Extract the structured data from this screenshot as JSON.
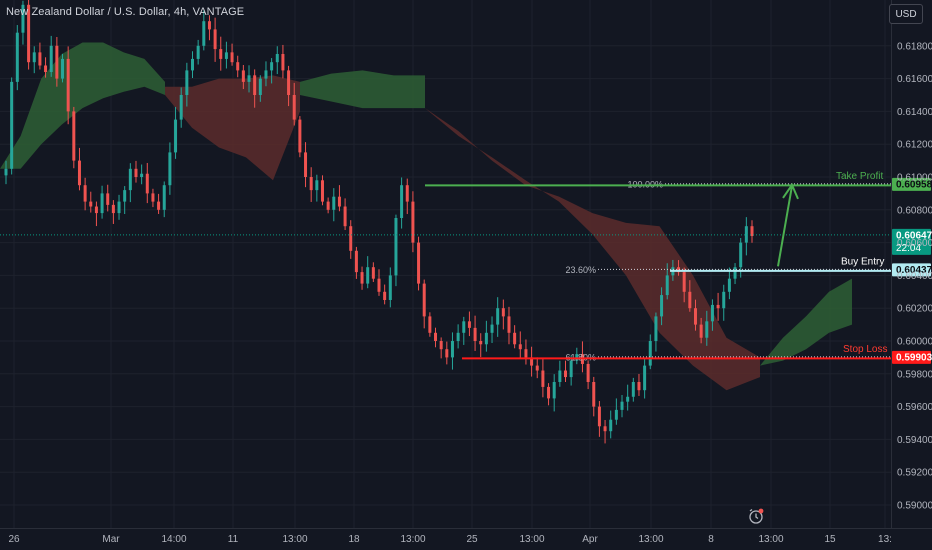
{
  "header": {
    "title": "New Zealand Dollar / U.S. Dollar, 4h, VANTAGE",
    "currency_button": "USD"
  },
  "colors": {
    "background": "#131722",
    "grid": "#1e222d",
    "bull": "#26a69a",
    "bear": "#ef5350",
    "cloud_bull": "#2e5f35",
    "cloud_bear": "#5c2b2b",
    "take_profit": "#4caf50",
    "buy_entry": "#b2ebf2",
    "stop_loss": "#ff1a1a",
    "current_price": "#089981"
  },
  "icons": {
    "alert": "alarm-clock-icon"
  },
  "chart_data": {
    "type": "candlestick",
    "symbol": "New Zealand Dollar / U.S. Dollar",
    "interval": "4h",
    "exchange": "VANTAGE",
    "yaxis": {
      "ticks": [
        0.59,
        0.592,
        0.594,
        0.596,
        0.598,
        0.6,
        0.602,
        0.604,
        0.606,
        0.608,
        0.61,
        0.612,
        0.614,
        0.616,
        0.618
      ],
      "tick_labels": [
        "0.59000",
        "0.59200",
        "0.59400",
        "0.59600",
        "0.59800",
        "0.60000",
        "0.60200",
        "0.60400",
        "0.60600",
        "0.60800",
        "0.61000",
        "0.61200",
        "0.61400",
        "0.61600",
        "0.61800"
      ]
    },
    "xaxis": {
      "ticks": [
        "26",
        "Mar",
        "14:00",
        "11",
        "13:00",
        "18",
        "13:00",
        "25",
        "13:00",
        "Apr",
        "13:00",
        "8",
        "13:00",
        "15",
        "13:"
      ]
    },
    "close_path": [
      0.6105,
      0.6158,
      0.6188,
      0.6205,
      0.617,
      0.6176,
      0.6168,
      0.6164,
      0.618,
      0.616,
      0.6172,
      0.614,
      0.611,
      0.6095,
      0.6085,
      0.6082,
      0.6078,
      0.609,
      0.6083,
      0.6078,
      0.6085,
      0.6092,
      0.6105,
      0.61,
      0.6102,
      0.609,
      0.6085,
      0.608,
      0.6095,
      0.6115,
      0.6135,
      0.615,
      0.6165,
      0.6172,
      0.618,
      0.6195,
      0.619,
      0.6178,
      0.6172,
      0.6176,
      0.617,
      0.6165,
      0.6158,
      0.6162,
      0.615,
      0.616,
      0.6165,
      0.617,
      0.6175,
      0.6165,
      0.615,
      0.6135,
      0.6115,
      0.61,
      0.6092,
      0.6098,
      0.6085,
      0.608,
      0.6088,
      0.6082,
      0.607,
      0.6055,
      0.6042,
      0.6035,
      0.6045,
      0.6038,
      0.603,
      0.6025,
      0.604,
      0.6075,
      0.6095,
      0.6085,
      0.606,
      0.6035,
      0.6015,
      0.6005,
      0.6,
      0.5995,
      0.599,
      0.6,
      0.6005,
      0.6012,
      0.6008,
      0.6,
      0.5998,
      0.6005,
      0.601,
      0.602,
      0.6015,
      0.6005,
      0.5998,
      0.5995,
      0.599,
      0.5985,
      0.5982,
      0.5972,
      0.5965,
      0.5975,
      0.5982,
      0.5978,
      0.5988,
      0.5992,
      0.5986,
      0.5975,
      0.596,
      0.5948,
      0.5945,
      0.5952,
      0.5958,
      0.5963,
      0.5966,
      0.5975,
      0.597,
      0.5985,
      0.6,
      0.6015,
      0.6028,
      0.604,
      0.6045,
      0.6042,
      0.603,
      0.602,
      0.601,
      0.6002,
      0.6012,
      0.6022,
      0.602,
      0.603,
      0.6038,
      0.6045,
      0.606,
      0.607,
      0.6064
    ],
    "current_price": {
      "value": 0.60647,
      "label": "0.60647",
      "countdown": "22:04"
    },
    "levels": [
      {
        "name": "Take Profit",
        "price": 0.60958,
        "label": "0.60958",
        "fib": "100.00%"
      },
      {
        "name": "Buy Entry",
        "price": 0.60437,
        "label": "0.60437",
        "fib": "23.60%"
      },
      {
        "name": "Stop Loss",
        "price": 0.59903,
        "label": "0.59903",
        "fib": "61.80%"
      }
    ],
    "ichimoku_cloud": {
      "segments": [
        {
          "kind": "bull",
          "top": [
            0.6105,
            0.6125,
            0.616,
            0.6175,
            0.6182,
            0.6182,
            0.6176,
            0.6172,
            0.6158
          ],
          "bottom": [
            0.6105,
            0.6105,
            0.612,
            0.6132,
            0.6142,
            0.6148,
            0.6152,
            0.6155,
            0.615
          ]
        },
        {
          "kind": "bear",
          "top": [
            0.6155,
            0.6155,
            0.616,
            0.616,
            0.6162,
            0.6158
          ],
          "bottom": [
            0.615,
            0.613,
            0.6118,
            0.6112,
            0.6098,
            0.614
          ]
        },
        {
          "kind": "bull",
          "top": [
            0.6158,
            0.6163,
            0.6165,
            0.6162,
            0.6162
          ],
          "bottom": [
            0.615,
            0.6146,
            0.6142,
            0.6142,
            0.6142
          ]
        },
        {
          "kind": "bear",
          "top": [
            0.6142,
            0.6128,
            0.611,
            0.6095,
            0.6088,
            0.6078,
            0.6072,
            0.607,
            0.604,
            0.6002,
            0.599
          ],
          "bottom": [
            0.6142,
            0.6125,
            0.6112,
            0.6098,
            0.6085,
            0.6065,
            0.604,
            0.6005,
            0.5985,
            0.597,
            0.5978
          ]
        },
        {
          "kind": "bull",
          "top": [
            0.5985,
            0.6002,
            0.6015,
            0.603,
            0.6038
          ],
          "bottom": [
            0.5985,
            0.5988,
            0.5995,
            0.6005,
            0.601
          ]
        }
      ]
    }
  }
}
